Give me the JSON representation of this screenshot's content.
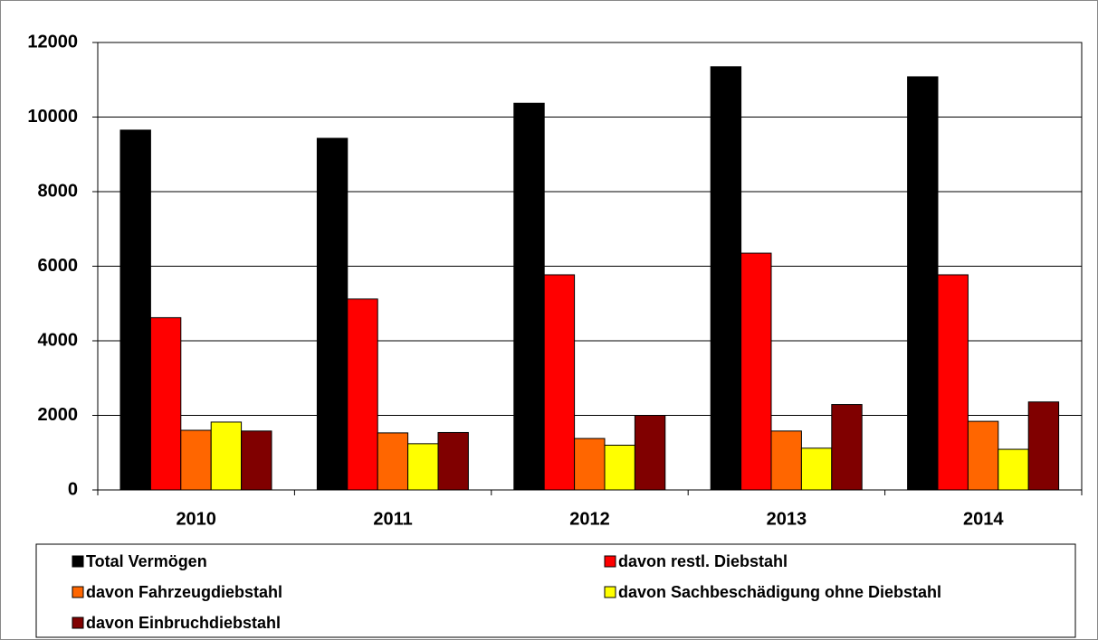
{
  "chart_data": {
    "type": "bar",
    "categories": [
      "2010",
      "2011",
      "2012",
      "2013",
      "2014"
    ],
    "series": [
      {
        "name": "Total Vermögen",
        "color": "#000000",
        "values": [
          9650,
          9430,
          10370,
          11350,
          11080
        ]
      },
      {
        "name": "davon restl. Diebstahl",
        "color": "#ff0000",
        "values": [
          4620,
          5120,
          5770,
          6350,
          5770
        ]
      },
      {
        "name": "davon Fahrzeugdiebstahl",
        "color": "#ff6600",
        "values": [
          1600,
          1530,
          1380,
          1580,
          1840
        ]
      },
      {
        "name": "davon Sachbeschädigung ohne Diebstahl",
        "color": "#ffff00",
        "values": [
          1820,
          1240,
          1200,
          1120,
          1090
        ]
      },
      {
        "name": "davon Einbruchdiebstahl",
        "color": "#800000",
        "values": [
          1580,
          1540,
          2000,
          2290,
          2360
        ]
      }
    ],
    "ylim": [
      0,
      12000
    ],
    "yticks": [
      0,
      2000,
      4000,
      6000,
      8000,
      10000,
      12000
    ],
    "grid": true,
    "legend": "bottom"
  }
}
